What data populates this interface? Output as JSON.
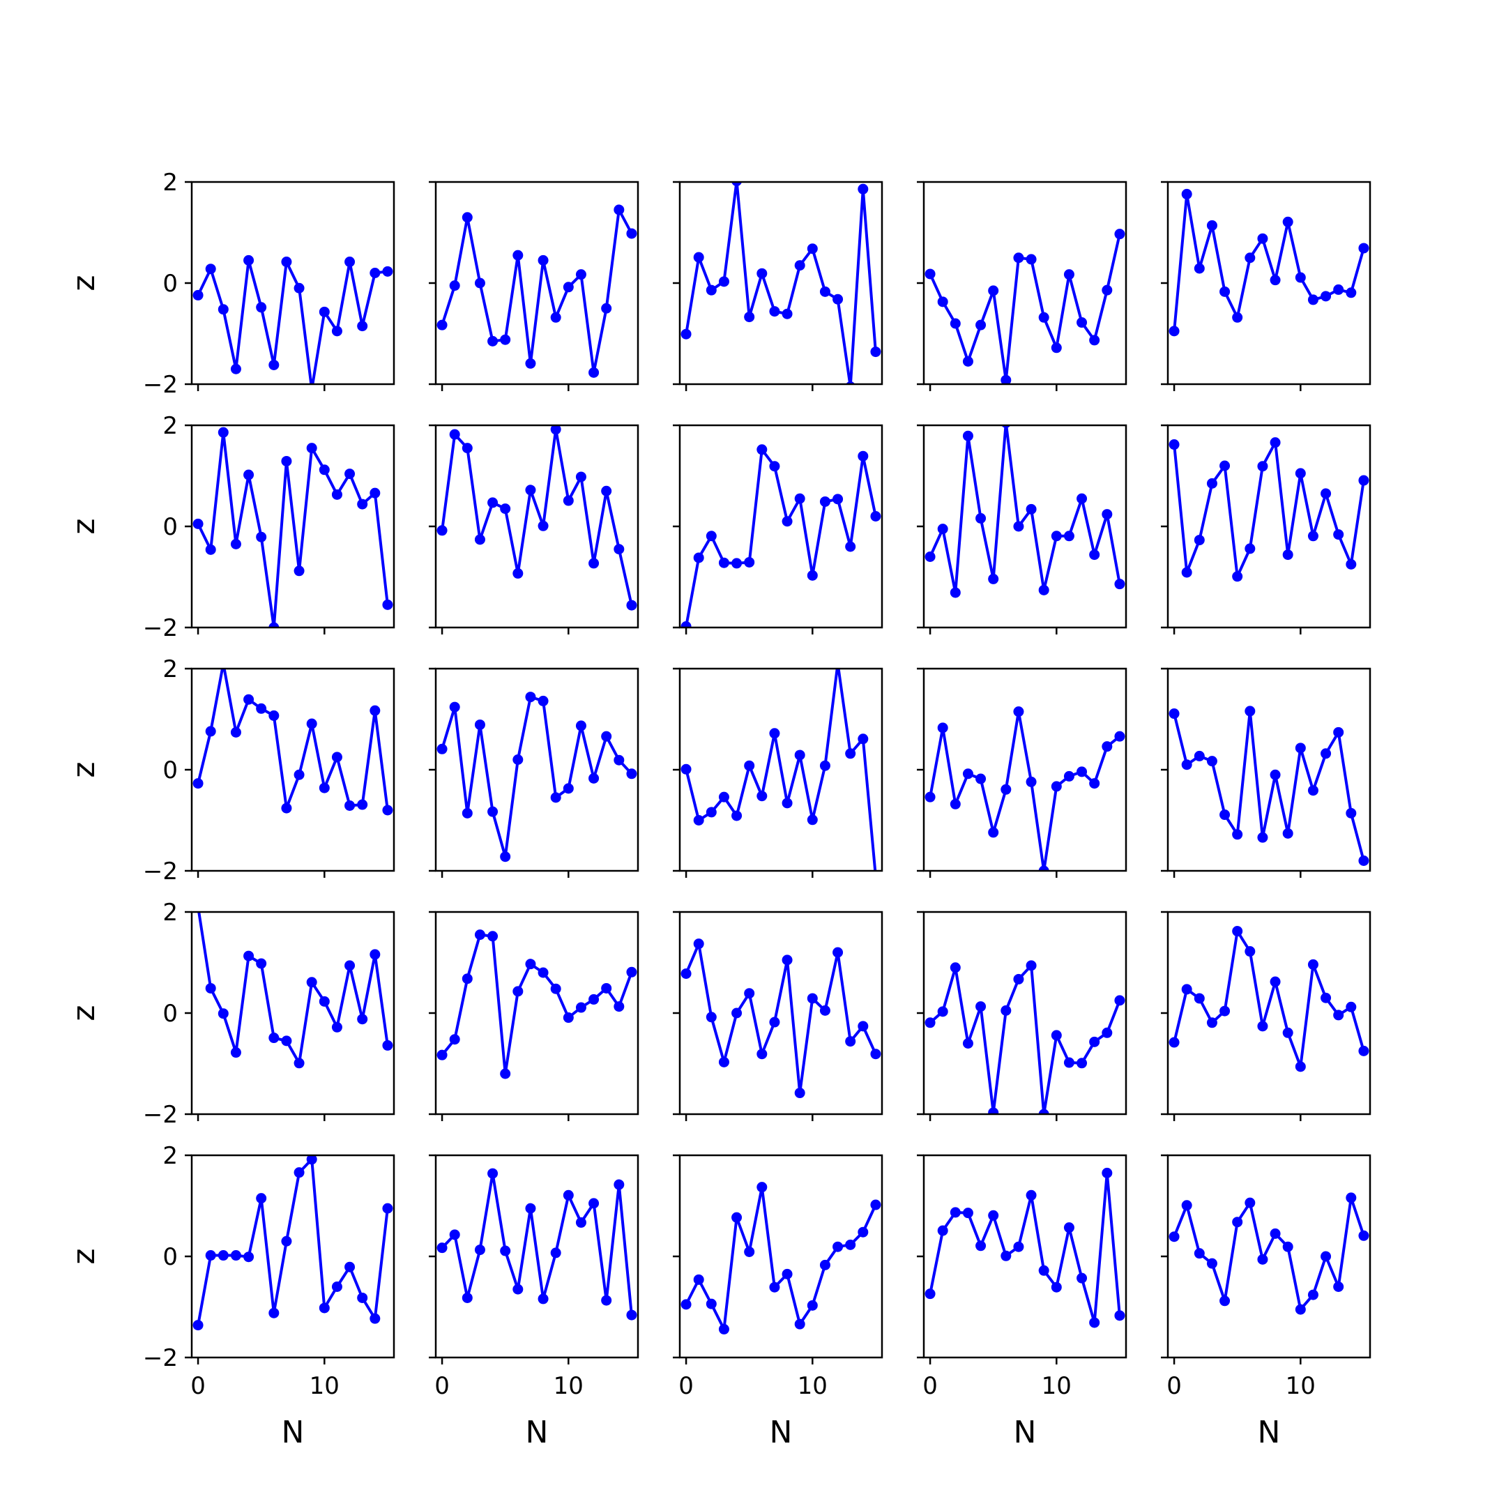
{
  "chart_data": {
    "type": "line",
    "layout": "5x5 small multiples, shared x and y axes",
    "xlabel": "N",
    "ylabel": "z",
    "xlim": [
      -0.5,
      15.5
    ],
    "ylim": [
      -2,
      2
    ],
    "xticks": [
      0,
      10
    ],
    "xtick_labels": [
      "0",
      "10"
    ],
    "yticks": [
      -2,
      0,
      2
    ],
    "ytick_labels": [
      "−2",
      "0",
      "2"
    ],
    "x": [
      0,
      1,
      2,
      3,
      4,
      5,
      6,
      7,
      8,
      9,
      10,
      11,
      12,
      13,
      14,
      15
    ],
    "line_color": "#0000ff",
    "marker": "circle",
    "grid": false,
    "panels": [
      {
        "row": 1,
        "col": 1,
        "y": [
          -0.24,
          0.28,
          -0.52,
          -1.7,
          0.45,
          -0.48,
          -1.62,
          0.42,
          -0.1,
          -2.1,
          -0.57,
          -0.95,
          0.42,
          -0.85,
          0.2,
          0.23
        ]
      },
      {
        "row": 1,
        "col": 2,
        "y": [
          -0.83,
          -0.05,
          1.3,
          0.0,
          -1.15,
          -1.12,
          0.55,
          -1.59,
          0.45,
          -0.68,
          -0.08,
          0.17,
          -1.77,
          -0.5,
          1.45,
          0.98
        ]
      },
      {
        "row": 1,
        "col": 3,
        "y": [
          -1.01,
          0.51,
          -0.14,
          0.03,
          2.02,
          -0.67,
          0.19,
          -0.56,
          -0.61,
          0.35,
          0.68,
          -0.17,
          -0.32,
          -2.05,
          1.86,
          -1.36
        ]
      },
      {
        "row": 1,
        "col": 4,
        "y": [
          0.18,
          -0.37,
          -0.8,
          -1.55,
          -0.83,
          -0.15,
          -1.92,
          0.5,
          0.47,
          -0.68,
          -1.28,
          0.17,
          -0.78,
          -1.13,
          -0.14,
          0.97
        ]
      },
      {
        "row": 1,
        "col": 5,
        "y": [
          -0.95,
          1.76,
          0.29,
          1.14,
          -0.17,
          -0.68,
          0.5,
          0.88,
          0.06,
          1.21,
          0.11,
          -0.33,
          -0.26,
          -0.13,
          -0.19,
          0.69
        ]
      },
      {
        "row": 2,
        "col": 1,
        "y": [
          0.05,
          -0.46,
          1.86,
          -0.35,
          1.02,
          -0.21,
          -2.0,
          1.29,
          -0.88,
          1.55,
          1.12,
          0.63,
          1.04,
          0.44,
          0.66,
          -1.55
        ]
      },
      {
        "row": 2,
        "col": 2,
        "y": [
          -0.08,
          1.82,
          1.55,
          -0.26,
          0.47,
          0.35,
          -0.93,
          0.72,
          0.01,
          1.92,
          0.51,
          0.98,
          -0.73,
          0.7,
          -0.45,
          -1.56
        ]
      },
      {
        "row": 2,
        "col": 3,
        "y": [
          -1.98,
          -0.62,
          -0.19,
          -0.72,
          -0.73,
          -0.71,
          1.52,
          1.19,
          0.1,
          0.55,
          -0.97,
          0.49,
          0.54,
          -0.4,
          1.39,
          0.2
        ]
      },
      {
        "row": 2,
        "col": 4,
        "y": [
          -0.6,
          -0.05,
          -1.31,
          1.79,
          0.16,
          -1.04,
          2.05,
          -0.0,
          0.34,
          -1.26,
          -0.19,
          -0.19,
          0.55,
          -0.56,
          0.24,
          -1.14
        ]
      },
      {
        "row": 2,
        "col": 5,
        "y": [
          1.62,
          -0.91,
          -0.27,
          0.85,
          1.2,
          -0.99,
          -0.44,
          1.19,
          1.66,
          -0.56,
          1.05,
          -0.19,
          0.65,
          -0.16,
          -0.75,
          0.91
        ]
      },
      {
        "row": 3,
        "col": 1,
        "y": [
          -0.27,
          0.76,
          2.1,
          0.74,
          1.39,
          1.21,
          1.07,
          -0.76,
          -0.1,
          0.91,
          -0.36,
          0.25,
          -0.71,
          -0.69,
          1.17,
          -0.8
        ]
      },
      {
        "row": 3,
        "col": 2,
        "y": [
          0.41,
          1.24,
          -0.86,
          0.89,
          -0.83,
          -1.72,
          0.2,
          1.44,
          1.36,
          -0.55,
          -0.37,
          0.87,
          -0.17,
          0.66,
          0.19,
          -0.08
        ]
      },
      {
        "row": 3,
        "col": 3,
        "y": [
          0.01,
          -1.0,
          -0.84,
          -0.54,
          -0.91,
          0.08,
          -0.52,
          0.72,
          -0.66,
          0.29,
          -0.99,
          0.08,
          2.1,
          0.32,
          0.61,
          -2.1
        ]
      },
      {
        "row": 3,
        "col": 4,
        "y": [
          -0.54,
          0.83,
          -0.68,
          -0.08,
          -0.18,
          -1.24,
          -0.39,
          1.15,
          -0.24,
          -2.0,
          -0.33,
          -0.13,
          -0.04,
          -0.27,
          0.46,
          0.66
        ]
      },
      {
        "row": 3,
        "col": 5,
        "y": [
          1.11,
          0.1,
          0.27,
          0.17,
          -0.89,
          -1.28,
          1.16,
          -1.34,
          -0.1,
          -1.26,
          0.43,
          -0.41,
          0.32,
          0.74,
          -0.86,
          -1.8
        ]
      },
      {
        "row": 4,
        "col": 1,
        "y": [
          2.1,
          0.49,
          -0.01,
          -0.78,
          1.13,
          0.98,
          -0.49,
          -0.55,
          -0.99,
          0.61,
          0.23,
          -0.28,
          0.94,
          -0.12,
          1.16,
          -0.64
        ]
      },
      {
        "row": 4,
        "col": 2,
        "y": [
          -0.83,
          -0.52,
          0.68,
          1.55,
          1.52,
          -1.2,
          0.43,
          0.97,
          0.8,
          0.48,
          -0.09,
          0.11,
          0.27,
          0.49,
          0.13,
          0.81
        ]
      },
      {
        "row": 4,
        "col": 3,
        "y": [
          0.78,
          1.37,
          -0.08,
          -0.97,
          0.0,
          0.39,
          -0.81,
          -0.18,
          1.05,
          -1.58,
          0.29,
          0.05,
          1.2,
          -0.56,
          -0.26,
          -0.81
        ]
      },
      {
        "row": 4,
        "col": 4,
        "y": [
          -0.19,
          0.03,
          0.9,
          -0.6,
          0.13,
          -1.97,
          0.05,
          0.67,
          0.94,
          -2.0,
          -0.44,
          -0.98,
          -0.99,
          -0.57,
          -0.39,
          0.25
        ]
      },
      {
        "row": 4,
        "col": 5,
        "y": [
          -0.58,
          0.47,
          0.29,
          -0.19,
          0.04,
          1.62,
          1.22,
          -0.26,
          0.62,
          -0.39,
          -1.06,
          0.96,
          0.3,
          -0.04,
          0.12,
          -0.75
        ]
      },
      {
        "row": 5,
        "col": 1,
        "y": [
          -1.36,
          0.02,
          0.02,
          0.02,
          -0.01,
          1.15,
          -1.12,
          0.3,
          1.66,
          1.92,
          -1.02,
          -0.6,
          -0.21,
          -0.82,
          -1.23,
          0.95
        ]
      },
      {
        "row": 5,
        "col": 2,
        "y": [
          0.17,
          0.43,
          -0.82,
          0.13,
          1.64,
          0.11,
          -0.65,
          0.95,
          -0.84,
          0.07,
          1.21,
          0.67,
          1.05,
          -0.87,
          1.42,
          -1.16
        ]
      },
      {
        "row": 5,
        "col": 3,
        "y": [
          -0.95,
          -0.46,
          -0.94,
          -1.44,
          0.77,
          0.09,
          1.37,
          -0.61,
          -0.35,
          -1.34,
          -0.97,
          -0.17,
          0.19,
          0.23,
          0.48,
          1.02
        ]
      },
      {
        "row": 5,
        "col": 4,
        "y": [
          -0.74,
          0.51,
          0.87,
          0.86,
          0.21,
          0.81,
          0.01,
          0.19,
          1.21,
          -0.28,
          -0.61,
          0.57,
          -0.43,
          -1.31,
          1.65,
          -1.17
        ]
      },
      {
        "row": 5,
        "col": 5,
        "y": [
          0.39,
          1.01,
          0.06,
          -0.14,
          -0.88,
          0.68,
          1.06,
          -0.06,
          0.45,
          0.19,
          -1.05,
          -0.76,
          0.0,
          -0.6,
          1.16,
          0.41
        ]
      }
    ]
  }
}
